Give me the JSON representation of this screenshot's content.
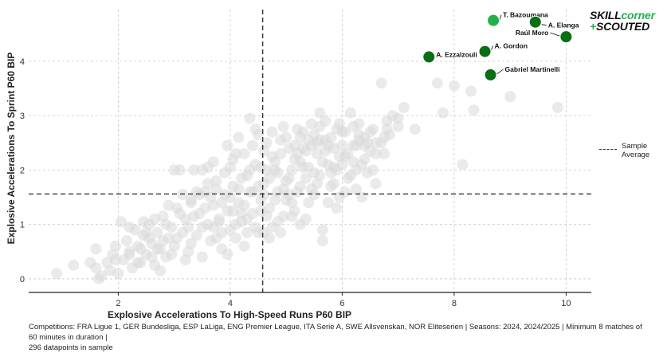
{
  "brand": {
    "logo_part1": "SKILL",
    "logo_part2": "corner",
    "logo_plus": "+",
    "logo_line2": "SCOUTED",
    "accent_color": "#22b24c",
    "highlight_color": "#0a6e14"
  },
  "legend": {
    "label_line1": "Sample",
    "label_line2": "Average"
  },
  "footnote": {
    "line1": "Competitions: FRA Ligue 1, GER Bundesliga, ESP LaLiga, ENG Premier League, ITA Serie A, SWE Allsvenskan, NOR Eliteserien | Seasons: 2024, 2024/2025 | Minimum 8 matches of 60 minutes in duration |",
    "line2": "296 datapoints in sample"
  },
  "chart_data": {
    "type": "scatter",
    "title": "",
    "xlabel": "Explosive Accelerations To High-Speed Runs P60 BIP",
    "ylabel": "Explosive Accelerations To Sprint P60 BIP",
    "xlim": [
      0.4,
      10.45
    ],
    "ylim": [
      -0.25,
      4.95
    ],
    "xticks": [
      2,
      4,
      6,
      8,
      10
    ],
    "yticks": [
      0,
      1,
      2,
      3,
      4
    ],
    "grid": true,
    "sample_average": {
      "x": 4.58,
      "y": 1.56
    },
    "highlighted": [
      {
        "name": "T. Bazoumana",
        "x": 8.7,
        "y": 4.75,
        "color": "#22b24c"
      },
      {
        "name": "A. Elanga",
        "x": 9.45,
        "y": 4.72,
        "color": "#0a6e14"
      },
      {
        "name": "Raúl Moro",
        "x": 10.0,
        "y": 4.45,
        "color": "#0a6e14"
      },
      {
        "name": "A. Gordon",
        "x": 8.55,
        "y": 4.18,
        "color": "#0a6e14"
      },
      {
        "name": "A. Ezzalzouli",
        "x": 7.55,
        "y": 4.08,
        "color": "#0a6e14"
      },
      {
        "name": "Gabriel Martinelli",
        "x": 8.65,
        "y": 3.75,
        "color": "#0a6e14"
      }
    ],
    "sample_points_description_count": 296,
    "sample_points": [
      [
        0.9,
        0.1
      ],
      [
        1.2,
        0.25
      ],
      [
        1.5,
        0.3
      ],
      [
        1.6,
        0.2
      ],
      [
        1.65,
        0.0
      ],
      [
        1.7,
        0.05
      ],
      [
        1.6,
        0.55
      ],
      [
        1.8,
        0.3
      ],
      [
        1.85,
        0.15
      ],
      [
        1.9,
        0.45
      ],
      [
        1.95,
        0.6
      ],
      [
        2.0,
        0.1
      ],
      [
        2.05,
        1.05
      ],
      [
        2.1,
        0.35
      ],
      [
        2.15,
        0.7
      ],
      [
        2.2,
        0.5
      ],
      [
        2.25,
        0.2
      ],
      [
        2.3,
        0.9
      ],
      [
        2.35,
        0.6
      ],
      [
        2.4,
        0.3
      ],
      [
        2.45,
        0.8
      ],
      [
        2.5,
        0.45
      ],
      [
        2.55,
        1.0
      ],
      [
        2.6,
        0.65
      ],
      [
        2.65,
        0.25
      ],
      [
        2.7,
        0.85
      ],
      [
        2.75,
        0.55
      ],
      [
        2.8,
        1.15
      ],
      [
        2.85,
        0.4
      ],
      [
        2.9,
        0.75
      ],
      [
        2.95,
        0.95
      ],
      [
        3.0,
        0.6
      ],
      [
        3.05,
        1.3
      ],
      [
        3.1,
        2.0
      ],
      [
        3.15,
        0.85
      ],
      [
        3.2,
        1.1
      ],
      [
        3.25,
        0.5
      ],
      [
        3.3,
        1.45
      ],
      [
        3.35,
        2.0
      ],
      [
        3.4,
        0.8
      ],
      [
        3.45,
        1.2
      ],
      [
        3.5,
        0.95
      ],
      [
        3.55,
        1.6
      ],
      [
        3.6,
        1.0
      ],
      [
        3.65,
        0.7
      ],
      [
        3.7,
        1.35
      ],
      [
        3.75,
        1.8
      ],
      [
        3.8,
        1.1
      ],
      [
        3.85,
        0.55
      ],
      [
        3.9,
        1.55
      ],
      [
        3.95,
        1.25
      ],
      [
        4.0,
        0.9
      ],
      [
        4.05,
        1.7
      ],
      [
        4.1,
        2.3
      ],
      [
        4.15,
        1.4
      ],
      [
        4.2,
        1.05
      ],
      [
        4.25,
        0.6
      ],
      [
        4.3,
        1.9
      ],
      [
        4.35,
        1.6
      ],
      [
        4.4,
        1.2
      ],
      [
        4.45,
        2.1
      ],
      [
        4.5,
        0.85
      ],
      [
        4.55,
        1.45
      ],
      [
        4.6,
        1.75
      ],
      [
        4.65,
        2.5
      ],
      [
        4.7,
        1.3
      ],
      [
        4.75,
        0.95
      ],
      [
        4.8,
        2.0
      ],
      [
        4.85,
        1.6
      ],
      [
        4.9,
        2.3
      ],
      [
        4.95,
        1.15
      ],
      [
        5.0,
        2.6
      ],
      [
        5.05,
        1.85
      ],
      [
        5.1,
        1.4
      ],
      [
        5.15,
        2.2
      ],
      [
        5.2,
        2.75
      ],
      [
        5.25,
        1.7
      ],
      [
        5.3,
        2.4
      ],
      [
        5.35,
        1.1
      ],
      [
        5.4,
        2.05
      ],
      [
        5.45,
        2.85
      ],
      [
        5.5,
        1.55
      ],
      [
        5.55,
        2.3
      ],
      [
        5.6,
        1.9
      ],
      [
        5.65,
        0.9
      ],
      [
        5.7,
        2.55
      ],
      [
        5.75,
        2.1
      ],
      [
        5.8,
        1.7
      ],
      [
        5.85,
        2.4
      ],
      [
        5.9,
        2.0
      ],
      [
        5.95,
        1.5
      ],
      [
        6.0,
        2.7
      ],
      [
        6.05,
        2.25
      ],
      [
        6.1,
        1.85
      ],
      [
        6.15,
        3.05
      ],
      [
        6.2,
        2.45
      ],
      [
        6.25,
        1.65
      ],
      [
        6.3,
        2.85
      ],
      [
        6.35,
        2.1
      ],
      [
        6.4,
        2.6
      ],
      [
        6.45,
        1.95
      ],
      [
        6.5,
        2.35
      ],
      [
        6.55,
        2.75
      ],
      [
        6.6,
        2.5
      ],
      [
        6.7,
        3.6
      ],
      [
        6.75,
        2.3
      ],
      [
        6.8,
        2.9
      ],
      [
        6.85,
        2.65
      ],
      [
        6.9,
        3.0
      ],
      [
        7.1,
        3.15
      ],
      [
        7.3,
        2.75
      ],
      [
        7.7,
        3.6
      ],
      [
        7.8,
        3.05
      ],
      [
        8.0,
        3.55
      ],
      [
        8.15,
        2.1
      ],
      [
        8.3,
        3.45
      ],
      [
        8.35,
        3.1
      ],
      [
        9.85,
        3.15
      ],
      [
        9.0,
        3.35
      ],
      [
        7.0,
        2.95
      ],
      [
        5.5,
        2.65
      ],
      [
        4.35,
        2.95
      ],
      [
        3.9,
        1.95
      ],
      [
        3.35,
        1.15
      ],
      [
        2.45,
        1.05
      ],
      [
        3.0,
        2.0
      ],
      [
        4.95,
        2.8
      ],
      [
        5.7,
        2.35
      ],
      [
        4.1,
        0.75
      ],
      [
        3.6,
        1.75
      ],
      [
        4.75,
        2.25
      ],
      [
        5.15,
        1.25
      ],
      [
        5.85,
        1.75
      ],
      [
        4.05,
        2.2
      ],
      [
        3.5,
        0.4
      ],
      [
        2.75,
        0.15
      ],
      [
        4.6,
        0.85
      ],
      [
        5.25,
        2.15
      ],
      [
        3.8,
        1.05
      ],
      [
        4.4,
        1.6
      ],
      [
        4.25,
        1.35
      ],
      [
        3.15,
        1.55
      ],
      [
        2.9,
        1.35
      ],
      [
        5.35,
        1.85
      ],
      [
        4.85,
        1.05
      ],
      [
        5.65,
        0.7
      ],
      [
        6.0,
        2.1
      ],
      [
        5.05,
        2.4
      ],
      [
        4.5,
        2.65
      ],
      [
        3.75,
        0.75
      ],
      [
        3.95,
        0.45
      ],
      [
        4.55,
        2.05
      ],
      [
        5.45,
        2.45
      ],
      [
        6.25,
        2.45
      ],
      [
        4.15,
        2.6
      ],
      [
        4.3,
        1.1
      ],
      [
        3.25,
        0.95
      ],
      [
        2.6,
        0.4
      ],
      [
        3.45,
        1.55
      ],
      [
        4.7,
        1.85
      ],
      [
        5.0,
        1.45
      ],
      [
        5.6,
        2.55
      ],
      [
        5.95,
        2.85
      ],
      [
        4.9,
        0.85
      ],
      [
        3.7,
        0.95
      ],
      [
        2.2,
        0.95
      ],
      [
        2.35,
        0.3
      ],
      [
        3.05,
        0.75
      ],
      [
        4.0,
        1.5
      ],
      [
        4.2,
        1.85
      ],
      [
        4.65,
        1.15
      ],
      [
        5.1,
        2.0
      ],
      [
        5.3,
        2.7
      ],
      [
        5.75,
        1.4
      ],
      [
        6.1,
        2.3
      ],
      [
        6.4,
        2.2
      ],
      [
        6.6,
        1.75
      ],
      [
        3.6,
        2.05
      ],
      [
        3.85,
        1.4
      ],
      [
        4.45,
        0.95
      ],
      [
        4.8,
        1.45
      ],
      [
        5.2,
        1.6
      ],
      [
        5.5,
        1.95
      ],
      [
        5.8,
        2.6
      ],
      [
        6.05,
        1.6
      ],
      [
        6.3,
        2.55
      ],
      [
        6.55,
        2.0
      ],
      [
        3.3,
        0.65
      ],
      [
        2.95,
        0.45
      ],
      [
        2.55,
        0.75
      ],
      [
        4.1,
        1.0
      ],
      [
        4.35,
        2.0
      ],
      [
        4.6,
        2.35
      ],
      [
        4.95,
        1.65
      ],
      [
        5.25,
        1.0
      ],
      [
        5.4,
        2.55
      ],
      [
        5.65,
        2.15
      ],
      [
        5.9,
        1.3
      ],
      [
        6.2,
        2.8
      ],
      [
        6.45,
        2.5
      ],
      [
        6.75,
        2.6
      ],
      [
        3.55,
        1.3
      ],
      [
        3.2,
        0.35
      ],
      [
        2.85,
        1.0
      ],
      [
        2.7,
        0.55
      ],
      [
        4.75,
        2.7
      ],
      [
        5.15,
        2.45
      ],
      [
        5.55,
        1.75
      ],
      [
        5.95,
        2.25
      ],
      [
        6.35,
        1.5
      ],
      [
        4.05,
        1.25
      ],
      [
        4.5,
        1.7
      ],
      [
        3.65,
        1.5
      ],
      [
        3.95,
        2.45
      ],
      [
        4.25,
        2.3
      ],
      [
        4.85,
        1.95
      ],
      [
        5.05,
        1.55
      ],
      [
        5.35,
        2.35
      ],
      [
        5.6,
        2.8
      ],
      [
        5.85,
        2.05
      ],
      [
        6.15,
        1.9
      ],
      [
        6.5,
        2.7
      ],
      [
        3.4,
        1.6
      ],
      [
        3.1,
        1.2
      ],
      [
        2.65,
        1.1
      ],
      [
        2.4,
        0.55
      ],
      [
        4.3,
        0.85
      ],
      [
        4.7,
        0.75
      ],
      [
        5.0,
        1.8
      ],
      [
        5.4,
        1.4
      ],
      [
        5.7,
        2.9
      ],
      [
        6.0,
        2.45
      ],
      [
        6.25,
        2.0
      ],
      [
        6.6,
        2.3
      ],
      [
        4.4,
        2.45
      ],
      [
        4.9,
        2.55
      ],
      [
        5.3,
        2.05
      ],
      [
        5.8,
        1.95
      ],
      [
        3.75,
        1.65
      ],
      [
        3.5,
        2.0
      ],
      [
        4.15,
        1.65
      ],
      [
        4.55,
        1.25
      ],
      [
        4.8,
        2.15
      ],
      [
        5.2,
        2.3
      ],
      [
        5.45,
        1.65
      ],
      [
        5.75,
        2.45
      ],
      [
        6.05,
        2.7
      ],
      [
        6.4,
        2.45
      ],
      [
        3.85,
        0.85
      ],
      [
        3.3,
        1.4
      ],
      [
        2.8,
        0.7
      ],
      [
        2.5,
        0.85
      ],
      [
        2.2,
        0.45
      ],
      [
        1.95,
        0.35
      ],
      [
        4.0,
        2.05
      ],
      [
        4.6,
        1.55
      ],
      [
        5.1,
        1.15
      ],
      [
        5.55,
        2.5
      ],
      [
        6.2,
        2.15
      ],
      [
        6.7,
        2.5
      ],
      [
        7.0,
        2.8
      ],
      [
        5.6,
        3.05
      ],
      [
        4.45,
        2.75
      ],
      [
        3.7,
        2.15
      ],
      [
        4.2,
        1.2
      ],
      [
        4.65,
        2.0
      ],
      [
        5.25,
        2.6
      ],
      [
        5.9,
        2.75
      ],
      [
        6.3,
        2.65
      ],
      [
        6.8,
        2.75
      ]
    ]
  }
}
